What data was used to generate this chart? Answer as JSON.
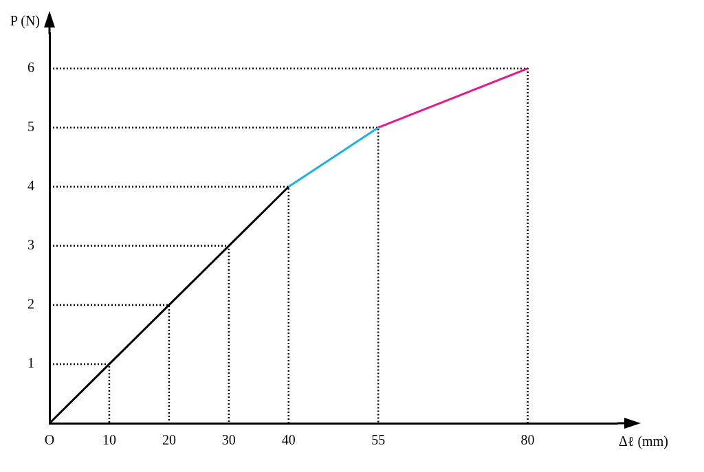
{
  "chart_data": {
    "type": "line",
    "xlabel": "Δℓ (mm)",
    "ylabel": "P (N)",
    "xlim": [
      0,
      95
    ],
    "xticks": [
      {
        "value": 0,
        "label": "O"
      },
      10,
      20,
      30,
      40,
      55,
      80
    ],
    "ylim": [
      0,
      6.6
    ],
    "yticks": [
      1,
      2,
      3,
      4,
      5,
      6
    ],
    "grid": false,
    "legend": false,
    "marker": "none",
    "line_style": "solid",
    "series": [
      {
        "color": "#000000",
        "x": [
          0,
          10,
          20,
          30,
          40
        ],
        "values": [
          0,
          1,
          2,
          3,
          4
        ]
      },
      {
        "color": "#1ab0e8",
        "x": [
          40,
          55
        ],
        "values": [
          4,
          5
        ]
      },
      {
        "color": "#e6198c",
        "x": [
          55,
          80
        ],
        "values": [
          5,
          6
        ]
      },
      {
        "color": "#000000",
        "line_style": "dotted",
        "x": [
          0,
          10,
          10
        ],
        "values": [
          1,
          1,
          0
        ]
      },
      {
        "color": "#000000",
        "line_style": "dotted",
        "x": [
          0,
          20,
          20
        ],
        "values": [
          2,
          2,
          0
        ]
      },
      {
        "color": "#000000",
        "line_style": "dotted",
        "x": [
          0,
          30,
          30
        ],
        "values": [
          3,
          3,
          0
        ]
      },
      {
        "color": "#000000",
        "line_style": "dotted",
        "x": [
          0,
          40,
          40
        ],
        "values": [
          4,
          4,
          0
        ]
      },
      {
        "color": "#000000",
        "line_style": "dotted",
        "x": [
          0,
          55,
          55
        ],
        "values": [
          5,
          5,
          0
        ]
      },
      {
        "color": "#000000",
        "line_style": "dotted",
        "x": [
          0,
          80,
          80
        ],
        "values": [
          6,
          6,
          0
        ]
      }
    ]
  }
}
